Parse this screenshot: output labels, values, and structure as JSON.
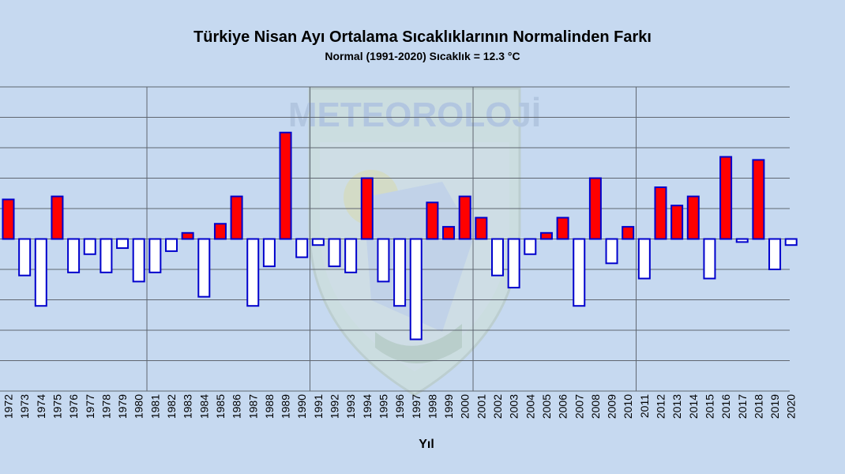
{
  "chart_data": {
    "type": "bar",
    "title": "Türkiye Nisan Ayı Ortalama Sıcaklıklarının Normalinden  Farkı",
    "subtitle": "Normal (1991-2020) Sıcaklık = 12.3 °C",
    "xlabel": "Yıl",
    "ylabel": "",
    "ylim": [
      -2.5,
      2.5
    ],
    "grid": true,
    "categories": [
      "1972",
      "1973",
      "1974",
      "1975",
      "1976",
      "1977",
      "1978",
      "1979",
      "1980",
      "1981",
      "1982",
      "1983",
      "1984",
      "1985",
      "1986",
      "1987",
      "1988",
      "1989",
      "1990",
      "1991",
      "1992",
      "1993",
      "1994",
      "1995",
      "1996",
      "1997",
      "1998",
      "1999",
      "2000",
      "2001",
      "2002",
      "2003",
      "2004",
      "2005",
      "2006",
      "2007",
      "2008",
      "2009",
      "2010",
      "2011",
      "2012",
      "2013",
      "2014",
      "2015",
      "2016",
      "2017",
      "2018",
      "2019",
      "2020"
    ],
    "values": [
      0.65,
      -0.6,
      -1.1,
      0.7,
      -0.55,
      -0.25,
      -0.55,
      -0.15,
      -0.7,
      -0.55,
      -0.2,
      0.1,
      -0.95,
      0.25,
      0.7,
      -1.1,
      -0.45,
      1.75,
      -0.3,
      -0.1,
      -0.45,
      -0.55,
      1.0,
      -0.7,
      -1.1,
      -1.65,
      0.6,
      0.2,
      0.7,
      0.35,
      -0.6,
      -0.8,
      -0.25,
      0.1,
      0.35,
      -1.1,
      1.0,
      -0.4,
      0.2,
      -0.65,
      0.85,
      0.55,
      0.7,
      -0.65,
      1.35,
      -0.05,
      1.3,
      -0.5,
      -0.1
    ],
    "colors": {
      "positive": "#ff0000",
      "negative": "#ffffff",
      "border": "#0000cc",
      "grid": "#5f6670",
      "background": "#c6d9f0"
    }
  },
  "watermark": {
    "text": "METEOROLOJİ"
  }
}
